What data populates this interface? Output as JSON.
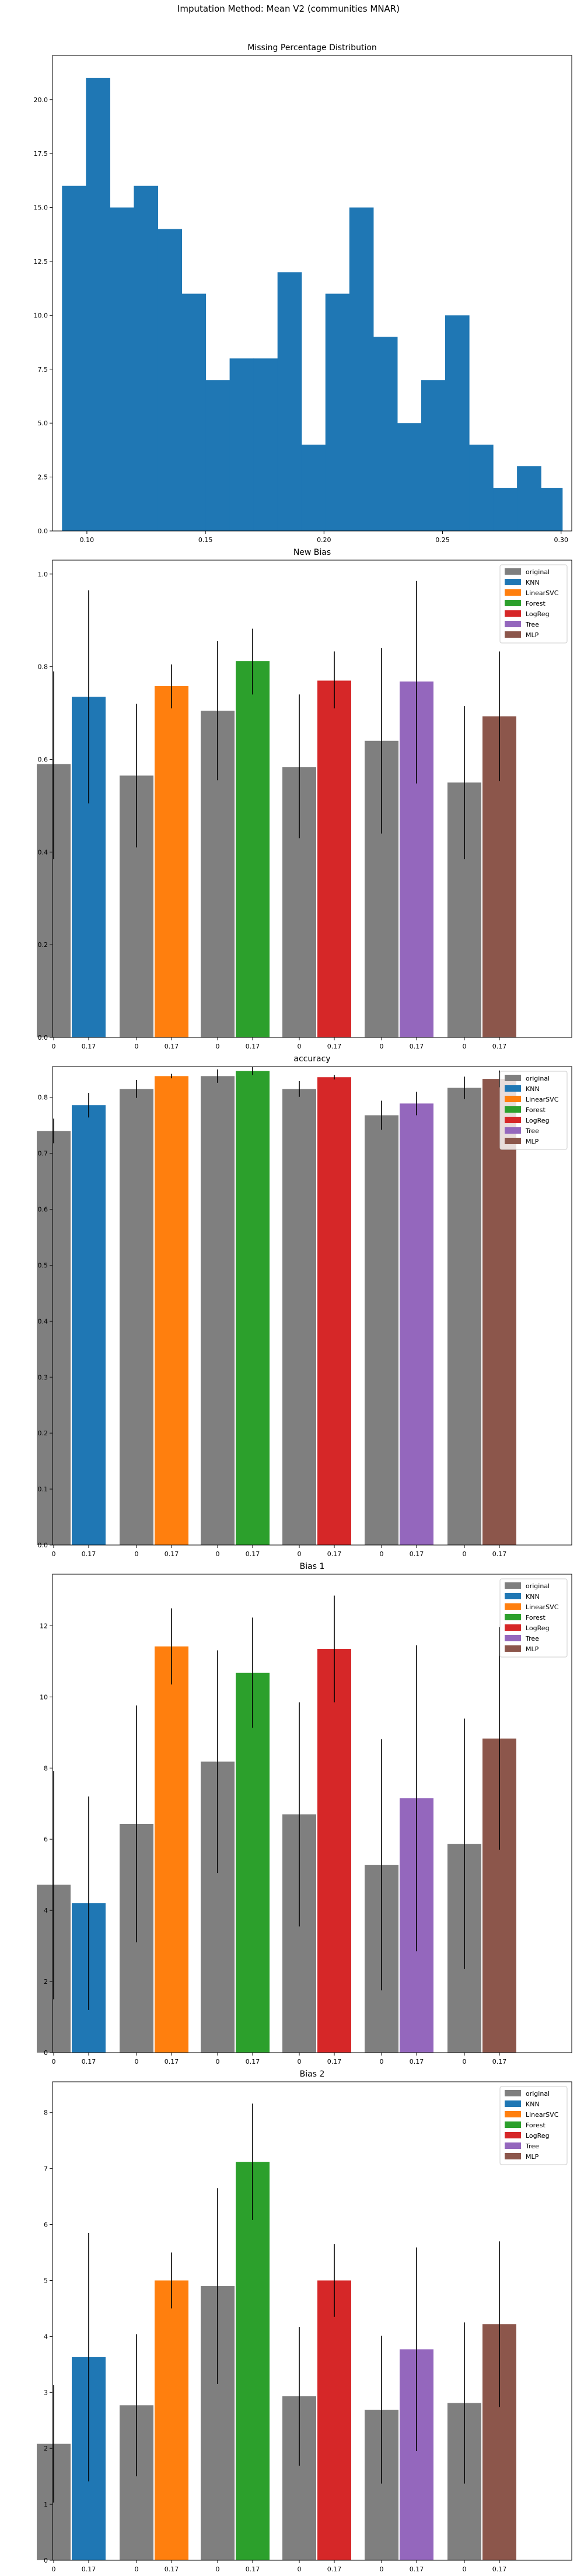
{
  "figure": {
    "suptitle": "Imputation Method: Mean V2 (communities MNAR)"
  },
  "colors": {
    "original": "#7f7f7f",
    "KNN": "#1f77b4",
    "LinearSVC": "#ff7f0e",
    "Forest": "#2ca02c",
    "LogReg": "#d62728",
    "Tree": "#9467bd",
    "MLP": "#8c564b",
    "hist": "#1f77b4"
  },
  "chart_data": [
    {
      "type": "bar",
      "title": "Missing Percentage Distribution",
      "xlabel": "",
      "ylabel": "",
      "x_ticks": [
        "0.10",
        "0.15",
        "0.20",
        "0.25",
        "0.30"
      ],
      "x_tick_values": [
        0.1,
        0.15,
        0.2,
        0.25,
        0.3
      ],
      "y_ticks": [
        "0.0",
        "2.5",
        "5.0",
        "7.5",
        "10.0",
        "12.5",
        "15.0",
        "17.5",
        "20.0"
      ],
      "xlim": [
        0.0855,
        0.3045
      ],
      "ylim": [
        0,
        22.05
      ],
      "bin_edges": [
        0.0895,
        0.0996,
        0.1097,
        0.1198,
        0.1299,
        0.14,
        0.1501,
        0.1602,
        0.1703,
        0.1804,
        0.1905,
        0.2006,
        0.2107,
        0.2208,
        0.2309,
        0.241,
        0.2511,
        0.2612,
        0.2713,
        0.2814,
        0.2915,
        0.3005
      ],
      "values": [
        16,
        21,
        15,
        16,
        14,
        11,
        7,
        8,
        8,
        12,
        4,
        11,
        15,
        9,
        5,
        7,
        10,
        4,
        2,
        3,
        2
      ]
    },
    {
      "type": "bar",
      "title": "New Bias",
      "xlabel": "",
      "ylabel": "",
      "y_ticks": [
        "0.0",
        "0.2",
        "0.4",
        "0.6",
        "0.8",
        "1.0"
      ],
      "ylim": [
        0,
        1.03
      ],
      "legend_position": "top-right",
      "legend": [
        "original",
        "KNN",
        "LinearSVC",
        "Forest",
        "LogReg",
        "Tree",
        "MLP"
      ],
      "groups": [
        {
          "model": "KNN",
          "labels": [
            "0",
            "0.17"
          ],
          "values": [
            0.59,
            0.735
          ],
          "err_low": [
            0.385,
            0.505
          ],
          "err_high": [
            0.79,
            0.965
          ]
        },
        {
          "model": "LinearSVC",
          "labels": [
            "0",
            "0.17"
          ],
          "values": [
            0.565,
            0.758
          ],
          "err_low": [
            0.41,
            0.71
          ],
          "err_high": [
            0.72,
            0.805
          ]
        },
        {
          "model": "Forest",
          "labels": [
            "0",
            "0.17"
          ],
          "values": [
            0.705,
            0.812
          ],
          "err_low": [
            0.555,
            0.74
          ],
          "err_high": [
            0.855,
            0.882
          ]
        },
        {
          "model": "LogReg",
          "labels": [
            "0",
            "0.17"
          ],
          "values": [
            0.583,
            0.77
          ],
          "err_low": [
            0.43,
            0.71
          ],
          "err_high": [
            0.74,
            0.833
          ]
        },
        {
          "model": "Tree",
          "labels": [
            "0",
            "0.17"
          ],
          "values": [
            0.64,
            0.768
          ],
          "err_low": [
            0.44,
            0.548
          ],
          "err_high": [
            0.84,
            0.985
          ]
        },
        {
          "model": "MLP",
          "labels": [
            "0",
            "0.17"
          ],
          "values": [
            0.55,
            0.693
          ],
          "err_low": [
            0.385,
            0.553
          ],
          "err_high": [
            0.715,
            0.833
          ]
        }
      ]
    },
    {
      "type": "bar",
      "title": "accuracy",
      "xlabel": "",
      "ylabel": "",
      "y_ticks": [
        "0.0",
        "0.1",
        "0.2",
        "0.3",
        "0.4",
        "0.5",
        "0.6",
        "0.7",
        "0.8"
      ],
      "ylim": [
        0,
        0.855
      ],
      "legend_position": "top-right",
      "legend": [
        "original",
        "KNN",
        "LinearSVC",
        "Forest",
        "LogReg",
        "Tree",
        "MLP"
      ],
      "groups": [
        {
          "model": "KNN",
          "labels": [
            "0",
            "0.17"
          ],
          "values": [
            0.74,
            0.786
          ],
          "err_low": [
            0.718,
            0.764
          ],
          "err_high": [
            0.762,
            0.808
          ]
        },
        {
          "model": "LinearSVC",
          "labels": [
            "0",
            "0.17"
          ],
          "values": [
            0.815,
            0.838
          ],
          "err_low": [
            0.799,
            0.834
          ],
          "err_high": [
            0.831,
            0.842
          ]
        },
        {
          "model": "Forest",
          "labels": [
            "0",
            "0.17"
          ],
          "values": [
            0.838,
            0.847
          ],
          "err_low": [
            0.826,
            0.84
          ],
          "err_high": [
            0.85,
            0.854
          ]
        },
        {
          "model": "LogReg",
          "labels": [
            "0",
            "0.17"
          ],
          "values": [
            0.815,
            0.836
          ],
          "err_low": [
            0.801,
            0.832
          ],
          "err_high": [
            0.829,
            0.84
          ]
        },
        {
          "model": "Tree",
          "labels": [
            "0",
            "0.17"
          ],
          "values": [
            0.768,
            0.789
          ],
          "err_low": [
            0.742,
            0.768
          ],
          "err_high": [
            0.794,
            0.81
          ]
        },
        {
          "model": "MLP",
          "labels": [
            "0",
            "0.17"
          ],
          "values": [
            0.817,
            0.833
          ],
          "err_low": [
            0.797,
            0.818
          ],
          "err_high": [
            0.837,
            0.848
          ]
        }
      ]
    },
    {
      "type": "bar",
      "title": "Bias 1",
      "xlabel": "",
      "ylabel": "",
      "y_ticks": [
        "0",
        "2",
        "4",
        "6",
        "8",
        "10",
        "12"
      ],
      "ylim": [
        0,
        13.45
      ],
      "legend_position": "top-right",
      "legend": [
        "original",
        "KNN",
        "LinearSVC",
        "Forest",
        "LogReg",
        "Tree",
        "MLP"
      ],
      "groups": [
        {
          "model": "KNN",
          "labels": [
            "0",
            "0.17"
          ],
          "values": [
            4.72,
            4.2
          ],
          "err_low": [
            1.5,
            1.2
          ],
          "err_high": [
            7.92,
            7.2
          ]
        },
        {
          "model": "LinearSVC",
          "labels": [
            "0",
            "0.17"
          ],
          "values": [
            6.43,
            11.42
          ],
          "err_low": [
            3.1,
            10.35
          ],
          "err_high": [
            9.76,
            12.49
          ]
        },
        {
          "model": "Forest",
          "labels": [
            "0",
            "0.17"
          ],
          "values": [
            8.18,
            10.68
          ],
          "err_low": [
            5.05,
            9.13
          ],
          "err_high": [
            11.31,
            12.23
          ]
        },
        {
          "model": "LogReg",
          "labels": [
            "0",
            "0.17"
          ],
          "values": [
            6.7,
            11.35
          ],
          "err_low": [
            3.55,
            9.85
          ],
          "err_high": [
            9.85,
            12.85
          ]
        },
        {
          "model": "Tree",
          "labels": [
            "0",
            "0.17"
          ],
          "values": [
            5.28,
            7.15
          ],
          "err_low": [
            1.75,
            2.85
          ],
          "err_high": [
            8.81,
            11.45
          ]
        },
        {
          "model": "MLP",
          "labels": [
            "0",
            "0.17"
          ],
          "values": [
            5.87,
            8.83
          ],
          "err_low": [
            2.35,
            5.7
          ],
          "err_high": [
            9.39,
            11.96
          ]
        }
      ]
    },
    {
      "type": "bar",
      "title": "Bias 2",
      "xlabel": "",
      "ylabel": "",
      "y_ticks": [
        "0",
        "1",
        "2",
        "3",
        "4",
        "5",
        "6",
        "7",
        "8"
      ],
      "ylim": [
        0,
        8.55
      ],
      "legend_position": "top-right",
      "legend": [
        "original",
        "KNN",
        "LinearSVC",
        "Forest",
        "LogReg",
        "Tree",
        "MLP"
      ],
      "groups": [
        {
          "model": "KNN",
          "labels": [
            "0",
            "0.17"
          ],
          "values": [
            2.08,
            3.63
          ],
          "err_low": [
            1.03,
            1.41
          ],
          "err_high": [
            3.13,
            5.85
          ]
        },
        {
          "model": "LinearSVC",
          "labels": [
            "0",
            "0.17"
          ],
          "values": [
            2.77,
            5.0
          ],
          "err_low": [
            1.5,
            4.5
          ],
          "err_high": [
            4.04,
            5.5
          ]
        },
        {
          "model": "Forest",
          "labels": [
            "0",
            "0.17"
          ],
          "values": [
            4.9,
            7.12
          ],
          "err_low": [
            3.15,
            6.08
          ],
          "err_high": [
            6.65,
            8.16
          ]
        },
        {
          "model": "LogReg",
          "labels": [
            "0",
            "0.17"
          ],
          "values": [
            2.93,
            5.0
          ],
          "err_low": [
            1.69,
            4.35
          ],
          "err_high": [
            4.17,
            5.65
          ]
        },
        {
          "model": "Tree",
          "labels": [
            "0",
            "0.17"
          ],
          "values": [
            2.69,
            3.77
          ],
          "err_low": [
            1.37,
            1.95
          ],
          "err_high": [
            4.01,
            5.59
          ]
        },
        {
          "model": "MLP",
          "labels": [
            "0",
            "0.17"
          ],
          "values": [
            2.81,
            4.22
          ],
          "err_low": [
            1.37,
            2.74
          ],
          "err_high": [
            4.25,
            5.7
          ]
        }
      ]
    }
  ]
}
